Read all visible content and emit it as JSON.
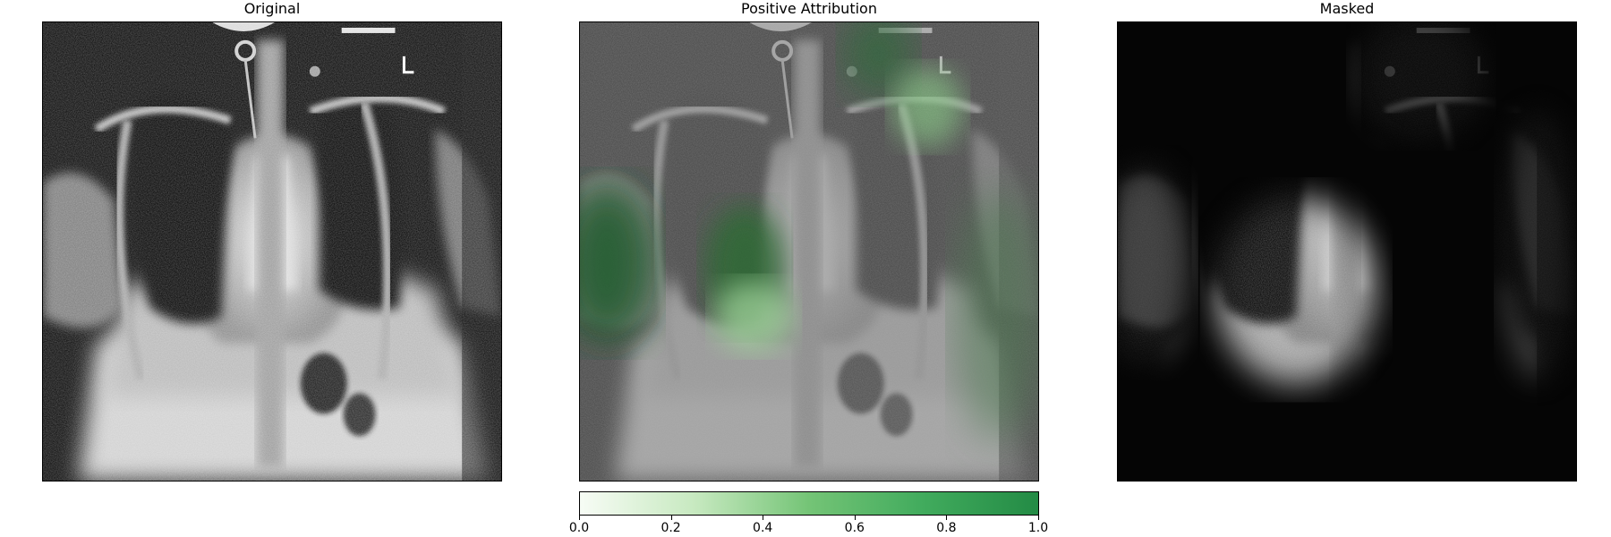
{
  "panels": [
    {
      "title": "Original"
    },
    {
      "title": "Positive Attribution"
    },
    {
      "title": "Masked"
    }
  ],
  "colorbar": {
    "range": [
      0.0,
      1.0
    ],
    "ticks": [
      "0.0",
      "0.2",
      "0.4",
      "0.6",
      "0.8",
      "1.0"
    ],
    "colors": [
      "#f7fcf5",
      "#c7e9c0",
      "#74c476",
      "#41ab5d",
      "#238b45"
    ]
  },
  "image_content": {
    "subject": "chest-xray",
    "attribution_colormap": "Greens"
  }
}
